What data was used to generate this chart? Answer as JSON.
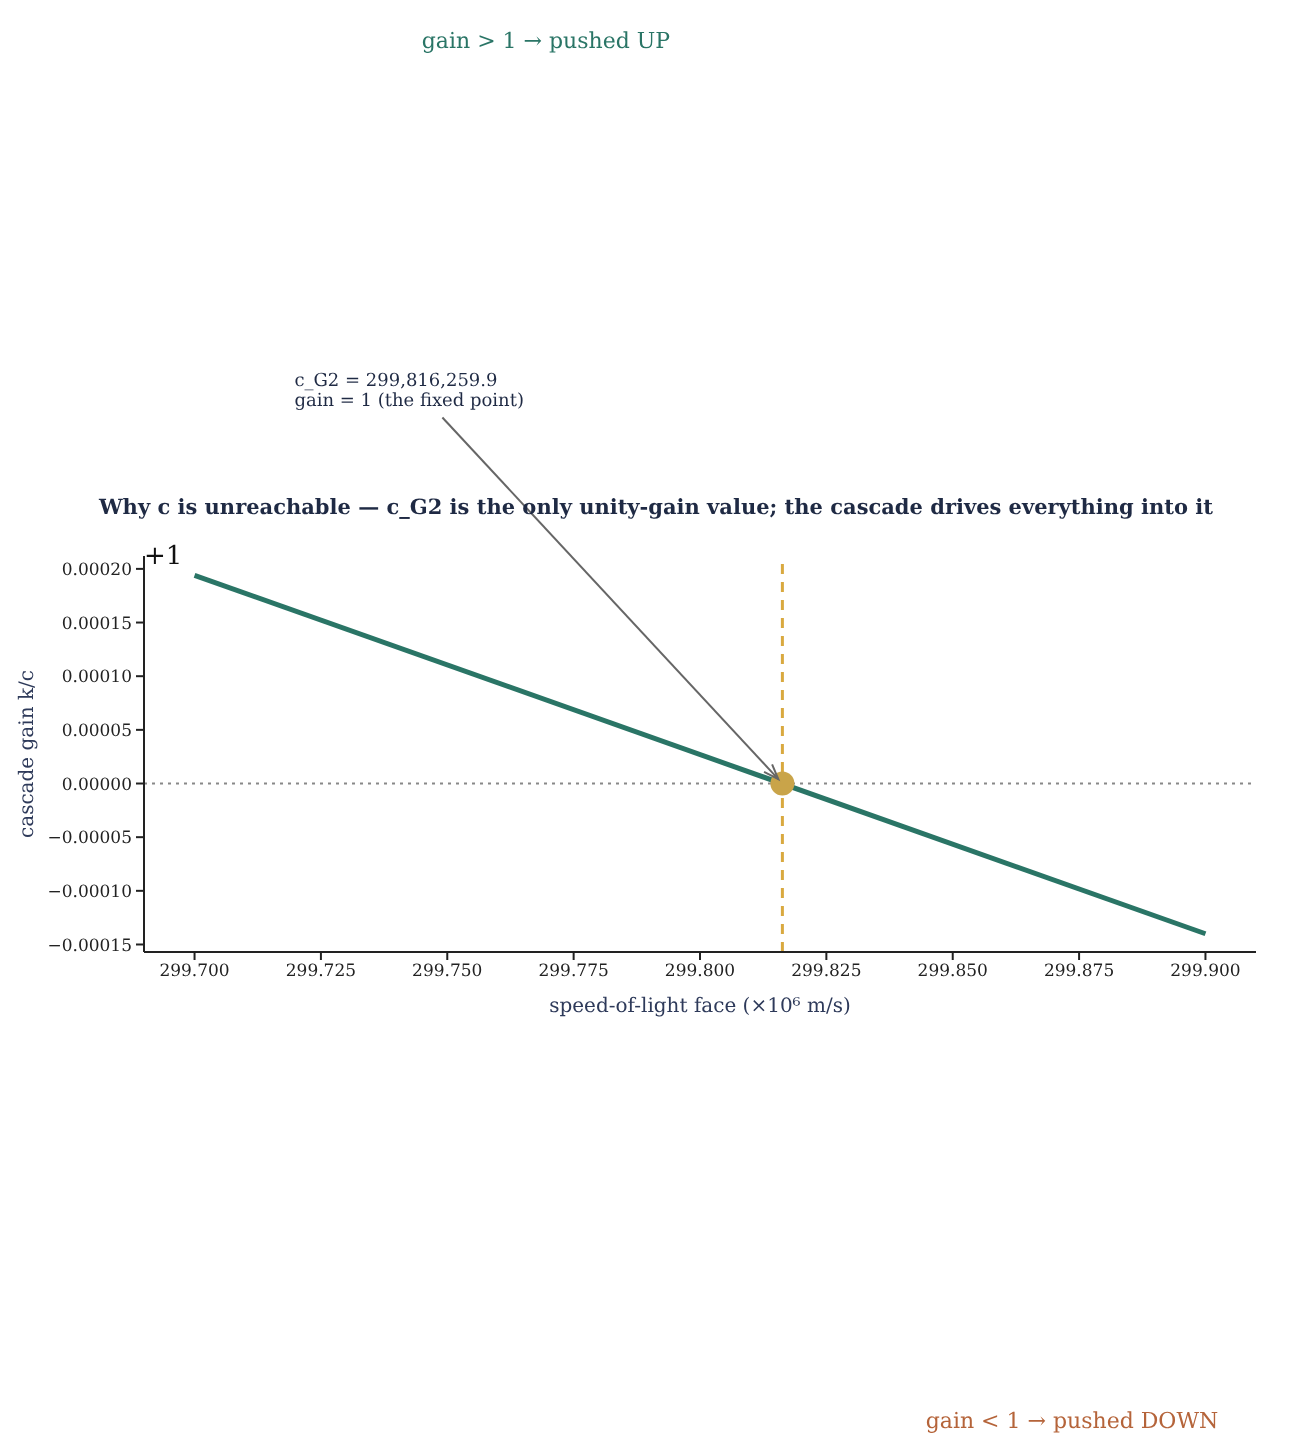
{
  "chart_data": {
    "type": "line",
    "title": "Why c is unreachable — c_G2 is the only unity-gain value; the cascade drives everything into it",
    "xlabel": "speed-of-light face  (×10⁶ m/s)",
    "ylabel": "cascade gain  k/c",
    "annotations": [
      "gain > 1 → pushed UP",
      "+1",
      "gain < 1 → pushed DOWN",
      {
        "text": "c_G2 = 299,816,259.9\ngain = 1 (the fixed point)",
        "x": 299.8163,
        "y": 0
      }
    ],
    "series": [
      {
        "color": "#2a7566",
        "x": [
          299.7,
          299.9
        ],
        "values": [
          0.000194,
          -0.00014
        ]
      },
      {
        "type": "scatter",
        "color": "#c9a449",
        "x": [
          299.8163
        ],
        "values": [
          0
        ]
      }
    ],
    "xlim": [
      299.69,
      299.91
    ],
    "ylim": [
      -0.000157,
      0.000212
    ],
    "xticks": [
      {
        "value": 299.7,
        "label": "299.700"
      },
      {
        "value": 299.725,
        "label": "299.725"
      },
      {
        "value": 299.75,
        "label": "299.750"
      },
      {
        "value": 299.775,
        "label": "299.775"
      },
      {
        "value": 299.8,
        "label": "299.800"
      },
      {
        "value": 299.825,
        "label": "299.825"
      },
      {
        "value": 299.85,
        "label": "299.850"
      },
      {
        "value": 299.875,
        "label": "299.875"
      },
      {
        "value": 299.9,
        "label": "299.900"
      }
    ],
    "yticks": [
      {
        "value": -0.00015,
        "label": "−0.00015"
      },
      {
        "value": -0.0001,
        "label": "−0.00010"
      },
      {
        "value": -5e-05,
        "label": "−0.00005"
      },
      {
        "value": 0,
        "label": "0.00000"
      },
      {
        "value": 5e-05,
        "label": "0.00005"
      },
      {
        "value": 0.0001,
        "label": "0.00010"
      },
      {
        "value": 0.00015,
        "label": "0.00015"
      },
      {
        "value": 0.0002,
        "label": "0.00020"
      }
    ],
    "ref_lines": [
      {
        "axis": "x",
        "value": 299.8163,
        "color": "#d9a93f",
        "line_style": "dashed"
      },
      {
        "axis": "y",
        "value": 0,
        "color": "#888888",
        "line_style": "dotted"
      }
    ],
    "grid": false,
    "legend": false
  }
}
